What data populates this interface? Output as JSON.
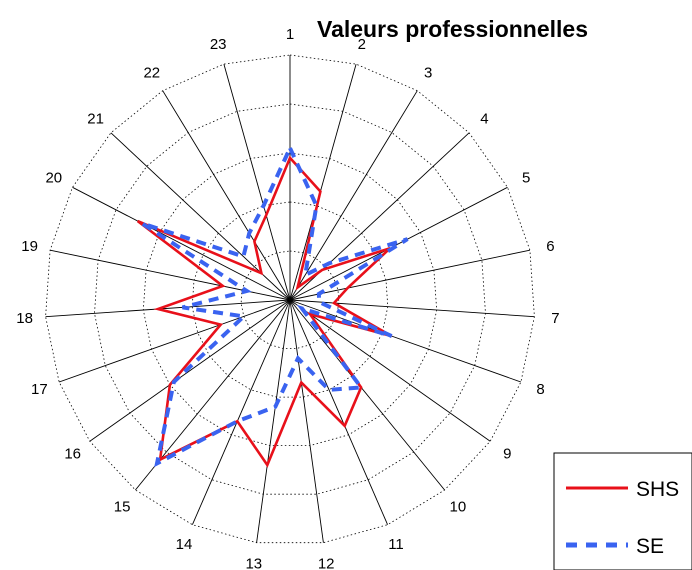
{
  "chart_data": {
    "type": "radar",
    "title": "Valeurs professionnelles",
    "categories": [
      "1",
      "2",
      "3",
      "4",
      "5",
      "6",
      "7",
      "8",
      "9",
      "10",
      "11",
      "12",
      "13",
      "14",
      "15",
      "16",
      "17",
      "18",
      "19",
      "20",
      "21",
      "22",
      "23"
    ],
    "rmax": 5,
    "rings": 5,
    "grid": true,
    "legend_position": "bottom-right",
    "series": [
      {
        "name": "SHS",
        "color": "#e8101a",
        "style": "solid",
        "values": [
          2.9,
          2.3,
          0.3,
          0.9,
          2.3,
          1.2,
          0.9,
          2.2,
          0.5,
          2.3,
          2.8,
          1.7,
          3.4,
          2.7,
          4.2,
          3.0,
          1.5,
          2.7,
          1.4,
          3.5,
          0.8,
          1.4,
          1.8
        ]
      },
      {
        "name": "SE",
        "color": "#3a63f0",
        "style": "dashed",
        "values": [
          3.1,
          2.0,
          0.6,
          1.1,
          2.7,
          0.6,
          0.6,
          2.2,
          0.3,
          2.3,
          2.0,
          1.2,
          2.2,
          2.7,
          4.3,
          2.9,
          1.0,
          2.2,
          0.9,
          3.4,
          1.3,
          1.6,
          2.0
        ]
      }
    ]
  }
}
